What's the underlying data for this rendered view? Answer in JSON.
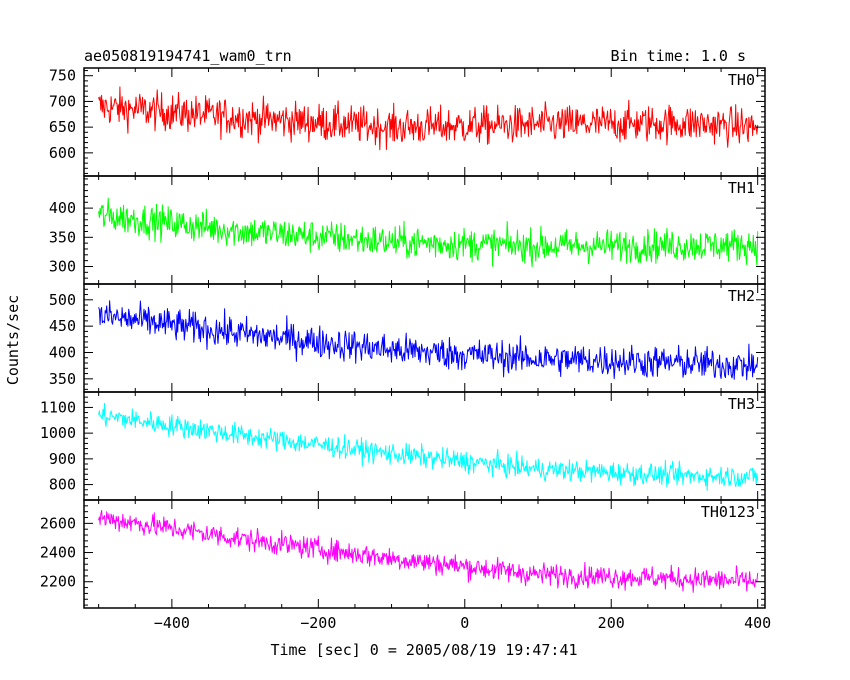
{
  "header": {
    "title": "ae050819194741_wam0_trn",
    "bin_time": "Bin time: 1.0 s"
  },
  "chart_data": {
    "type": "line",
    "ylabel": "Counts/sec",
    "xlabel": "Time [sec] 0 = 2005/08/19 19:47:41",
    "xlim": [
      -520,
      410
    ],
    "xticks": [
      -400,
      -200,
      0,
      200,
      400
    ],
    "grid": false,
    "series": [
      {
        "name": "TH0",
        "color": "#ff0000",
        "ylim": [
          555,
          765
        ],
        "yticks": [
          600,
          650,
          700,
          750
        ],
        "trend": [
          [
            -500,
            690
          ],
          [
            -300,
            668
          ],
          [
            -100,
            650
          ],
          [
            100,
            655
          ],
          [
            300,
            658
          ],
          [
            400,
            650
          ]
        ],
        "noise": 26
      },
      {
        "name": "TH1",
        "color": "#00ff00",
        "ylim": [
          270,
          455
        ],
        "yticks": [
          300,
          350,
          400
        ],
        "trend": [
          [
            -500,
            388
          ],
          [
            -300,
            360
          ],
          [
            -100,
            342
          ],
          [
            100,
            335
          ],
          [
            300,
            336
          ],
          [
            400,
            337
          ]
        ],
        "noise": 20
      },
      {
        "name": "TH2",
        "color": "#0000ff",
        "ylim": [
          325,
          530
        ],
        "yticks": [
          350,
          400,
          450,
          500
        ],
        "trend": [
          [
            -500,
            470
          ],
          [
            -300,
            435
          ],
          [
            -100,
            405
          ],
          [
            100,
            388
          ],
          [
            300,
            380
          ],
          [
            400,
            375
          ]
        ],
        "noise": 22
      },
      {
        "name": "TH3",
        "color": "#00ffff",
        "ylim": [
          740,
          1160
        ],
        "yticks": [
          800,
          900,
          1000,
          1100
        ],
        "trend": [
          [
            -500,
            1070
          ],
          [
            -300,
            990
          ],
          [
            -100,
            920
          ],
          [
            100,
            860
          ],
          [
            300,
            835
          ],
          [
            400,
            830
          ]
        ],
        "noise": 30
      },
      {
        "name": "TH0123",
        "color": "#ff00ff",
        "ylim": [
          2020,
          2760
        ],
        "yticks": [
          2200,
          2400,
          2600
        ],
        "trend": [
          [
            -500,
            2640
          ],
          [
            -300,
            2490
          ],
          [
            -100,
            2360
          ],
          [
            100,
            2250
          ],
          [
            300,
            2220
          ],
          [
            400,
            2200
          ]
        ],
        "noise": 55
      }
    ]
  }
}
